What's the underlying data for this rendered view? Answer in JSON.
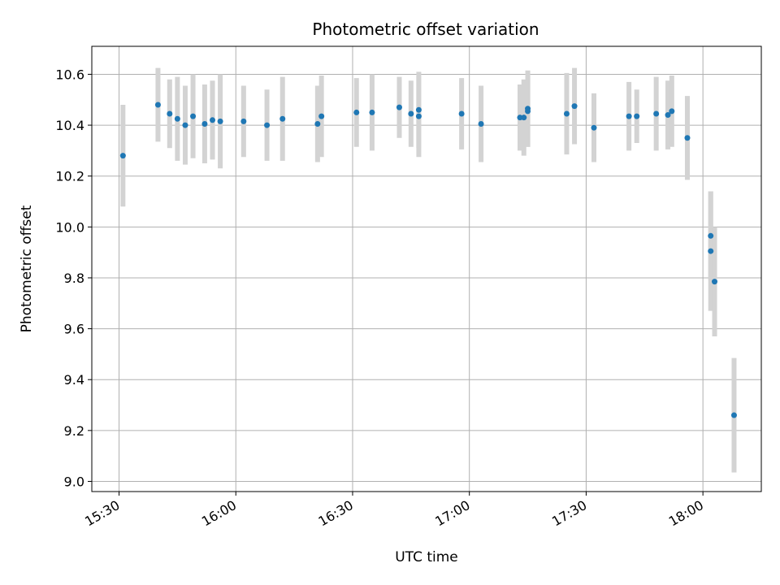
{
  "chart_data": {
    "type": "scatter",
    "title": "Photometric offset variation",
    "xlabel": "UTC time",
    "ylabel": "Photometric offset",
    "x_axis": {
      "kind": "time",
      "range": [
        "15:23",
        "18:15"
      ],
      "ticks": [
        "15:30",
        "16:00",
        "16:30",
        "17:00",
        "17:30",
        "18:00"
      ]
    },
    "y_axis": {
      "range": [
        8.96,
        10.71
      ],
      "ticks": [
        9.0,
        9.2,
        9.4,
        9.6,
        9.8,
        10.0,
        10.2,
        10.4,
        10.6
      ]
    },
    "grid": true,
    "marker_color": "#1f77b4",
    "errorbar_color": "#d3d3d3",
    "points": [
      {
        "x": "15:31",
        "y": 10.28,
        "err": 0.2
      },
      {
        "x": "15:40",
        "y": 10.48,
        "err": 0.145
      },
      {
        "x": "15:43",
        "y": 10.445,
        "err": 0.135
      },
      {
        "x": "15:45",
        "y": 10.425,
        "err": 0.165
      },
      {
        "x": "15:47",
        "y": 10.4,
        "err": 0.155
      },
      {
        "x": "15:49",
        "y": 10.435,
        "err": 0.165
      },
      {
        "x": "15:52",
        "y": 10.405,
        "err": 0.155
      },
      {
        "x": "15:54",
        "y": 10.42,
        "err": 0.155
      },
      {
        "x": "15:56",
        "y": 10.415,
        "err": 0.185
      },
      {
        "x": "16:02",
        "y": 10.415,
        "err": 0.14
      },
      {
        "x": "16:08",
        "y": 10.4,
        "err": 0.14
      },
      {
        "x": "16:12",
        "y": 10.425,
        "err": 0.165
      },
      {
        "x": "16:21",
        "y": 10.405,
        "err": 0.15
      },
      {
        "x": "16:22",
        "y": 10.435,
        "err": 0.16
      },
      {
        "x": "16:31",
        "y": 10.45,
        "err": 0.135
      },
      {
        "x": "16:35",
        "y": 10.45,
        "err": 0.15
      },
      {
        "x": "16:42",
        "y": 10.47,
        "err": 0.12
      },
      {
        "x": "16:45",
        "y": 10.445,
        "err": 0.13
      },
      {
        "x": "16:47",
        "y": 10.46,
        "err": 0.15
      },
      {
        "x": "16:47",
        "y": 10.435,
        "err": 0.16
      },
      {
        "x": "16:58",
        "y": 10.445,
        "err": 0.14
      },
      {
        "x": "17:03",
        "y": 10.405,
        "err": 0.15
      },
      {
        "x": "17:13",
        "y": 10.43,
        "err": 0.13
      },
      {
        "x": "17:14",
        "y": 10.43,
        "err": 0.15
      },
      {
        "x": "17:15",
        "y": 10.465,
        "err": 0.15
      },
      {
        "x": "17:15",
        "y": 10.455,
        "err": 0.14
      },
      {
        "x": "17:25",
        "y": 10.445,
        "err": 0.16
      },
      {
        "x": "17:27",
        "y": 10.475,
        "err": 0.15
      },
      {
        "x": "17:32",
        "y": 10.39,
        "err": 0.135
      },
      {
        "x": "17:41",
        "y": 10.435,
        "err": 0.135
      },
      {
        "x": "17:43",
        "y": 10.435,
        "err": 0.105
      },
      {
        "x": "17:48",
        "y": 10.445,
        "err": 0.145
      },
      {
        "x": "17:51",
        "y": 10.44,
        "err": 0.135
      },
      {
        "x": "17:52",
        "y": 10.455,
        "err": 0.14
      },
      {
        "x": "17:56",
        "y": 10.35,
        "err": 0.165
      },
      {
        "x": "18:02",
        "y": 9.965,
        "err": 0.175
      },
      {
        "x": "18:02",
        "y": 9.905,
        "err": 0.235
      },
      {
        "x": "18:03",
        "y": 9.785,
        "err": 0.215
      },
      {
        "x": "18:08",
        "y": 9.26,
        "err": 0.225
      }
    ]
  }
}
